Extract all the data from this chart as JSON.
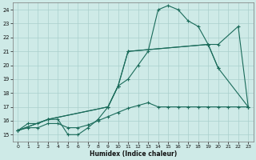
{
  "xlabel": "Humidex (Indice chaleur)",
  "bg_color": "#ceeae7",
  "grid_color": "#aacfcc",
  "line_color": "#1a6b5a",
  "xlim": [
    -0.5,
    23.5
  ],
  "ylim": [
    14.5,
    24.5
  ],
  "xticks": [
    0,
    1,
    2,
    3,
    4,
    5,
    6,
    7,
    8,
    9,
    10,
    11,
    12,
    13,
    14,
    15,
    16,
    17,
    18,
    19,
    20,
    21,
    22,
    23
  ],
  "yticks": [
    15,
    16,
    17,
    18,
    19,
    20,
    21,
    22,
    23,
    24
  ],
  "series": [
    {
      "x": [
        0,
        1,
        2,
        3,
        4,
        5,
        6,
        7,
        8,
        9,
        10,
        11,
        12,
        13,
        14,
        15,
        16,
        17,
        18,
        19,
        20
      ],
      "y": [
        15.3,
        15.8,
        15.8,
        16.1,
        16.1,
        15.0,
        15.0,
        15.5,
        16.1,
        17.0,
        18.5,
        19.0,
        20.0,
        21.0,
        24.0,
        24.3,
        24.0,
        23.2,
        22.8,
        21.5,
        19.8
      ]
    },
    {
      "x": [
        0,
        1,
        2,
        3,
        4,
        5,
        6,
        7,
        8,
        9,
        10,
        11,
        12,
        13,
        14,
        15,
        16,
        17,
        18,
        19,
        20,
        21,
        22,
        23
      ],
      "y": [
        15.3,
        15.5,
        15.5,
        15.8,
        15.8,
        15.5,
        15.5,
        15.7,
        16.0,
        16.3,
        16.6,
        16.9,
        17.1,
        17.3,
        17.0,
        17.0,
        17.0,
        17.0,
        17.0,
        17.0,
        17.0,
        17.0,
        17.0,
        17.0
      ]
    },
    {
      "x": [
        0,
        3,
        9,
        10,
        11,
        19,
        20,
        22,
        23
      ],
      "y": [
        15.3,
        16.1,
        17.0,
        18.5,
        21.0,
        21.5,
        21.5,
        22.8,
        17.0
      ]
    },
    {
      "x": [
        0,
        3,
        9,
        10,
        11,
        19,
        20,
        23
      ],
      "y": [
        15.3,
        16.1,
        17.0,
        18.5,
        21.0,
        21.5,
        19.8,
        17.0
      ]
    }
  ]
}
